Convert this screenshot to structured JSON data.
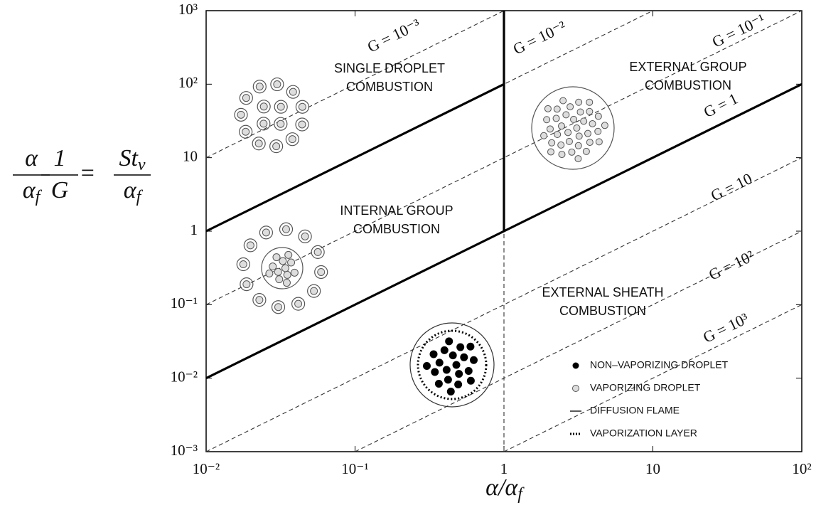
{
  "chart_data": {
    "type": "regime",
    "xscale": "log",
    "yscale": "log",
    "xlim": [
      0.01,
      100
    ],
    "ylim": [
      0.001,
      1000
    ],
    "xticks": [
      {
        "value": 0.01,
        "label": "10⁻²"
      },
      {
        "value": 0.1,
        "label": "10⁻¹"
      },
      1,
      10,
      {
        "value": 100,
        "label": "10²"
      }
    ],
    "yticks": [
      {
        "value": 0.001,
        "label": "10⁻³"
      },
      {
        "value": 0.01,
        "label": "10⁻²"
      },
      {
        "value": 0.1,
        "label": "10⁻¹"
      },
      1,
      10,
      {
        "value": 100,
        "label": "10²"
      },
      {
        "value": 1000,
        "label": "10³"
      }
    ],
    "xlabel": [
      "α/α",
      "f"
    ],
    "ylabel": {
      "a_num": "α",
      "a_den": [
        "α",
        "f"
      ],
      "b_num": "1",
      "b_den": "G",
      "eq": "=",
      "c_num": [
        "St",
        "v"
      ],
      "c_den": [
        "α",
        "f"
      ]
    },
    "boundaries": [
      {
        "x": [
          0.01,
          1
        ],
        "y": [
          1,
          100
        ]
      },
      {
        "x": [
          0.01,
          100
        ],
        "y": [
          0.01,
          100
        ]
      },
      {
        "x": [
          1,
          1
        ],
        "y": [
          1,
          1000
        ]
      }
    ],
    "g_lines": [
      {
        "name": "G = 10⁻³",
        "x": [
          0.01,
          1
        ],
        "y": [
          10,
          1000
        ]
      },
      {
        "name": "G = 10⁻²",
        "x": [
          0.01,
          10
        ],
        "y": [
          1,
          1000
        ]
      },
      {
        "name": "G = 10⁻¹",
        "x": [
          0.01,
          100
        ],
        "y": [
          0.1,
          1000
        ]
      },
      {
        "name": "G = 1",
        "x": [
          0.01,
          100
        ],
        "y": [
          0.01,
          100
        ]
      },
      {
        "name": "G = 10",
        "x": [
          0.01,
          100
        ],
        "y": [
          0.001,
          10
        ]
      },
      {
        "name": "G = 10²",
        "x": [
          0.1,
          100
        ],
        "y": [
          0.001,
          1
        ]
      },
      {
        "name": "G = 10³",
        "x": [
          1,
          100
        ],
        "y": [
          0.001,
          0.1
        ]
      },
      {
        "x": [
          1,
          1
        ],
        "y": [
          0.001,
          1
        ]
      }
    ],
    "regions": [
      [
        "SINGLE DROPLET",
        "COMBUSTION"
      ],
      [
        "EXTERNAL GROUP",
        "COMBUSTION"
      ],
      [
        "INTERNAL GROUP",
        "COMBUSTION"
      ],
      [
        "EXTERNAL SHEATH",
        "COMBUSTION"
      ]
    ],
    "legend": [
      "NON–VAPORIZING DROPLET",
      "VAPORIZING DROPLET",
      "DIFFUSION FLAME",
      "VAPORIZATION LAYER"
    ]
  }
}
